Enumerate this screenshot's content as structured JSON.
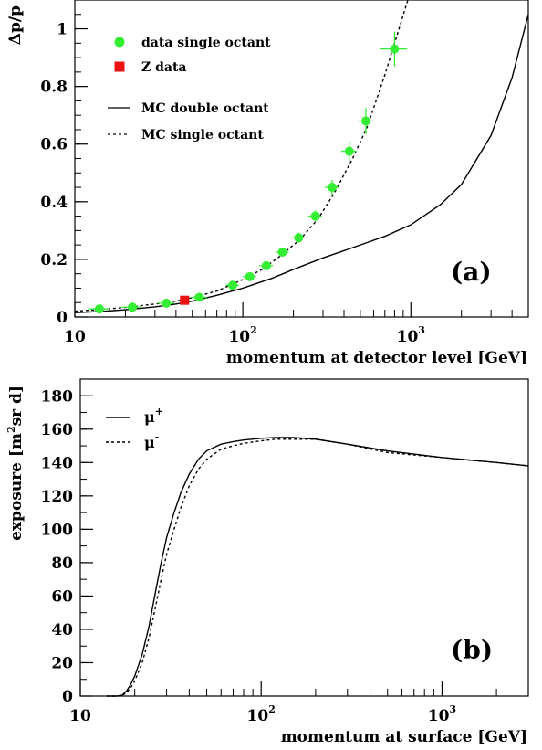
{
  "chart_data": [
    {
      "type": "scatter",
      "panel_label": "(a)",
      "xlabel": "momentum at detector level [GeV]",
      "ylabel": "Δp/p",
      "xscale": "log",
      "xlim": [
        10,
        5000
      ],
      "ylim": [
        0,
        1.1
      ],
      "xticks": [
        {
          "value": 10,
          "base": "10",
          "exp": ""
        },
        {
          "value": 100,
          "base": "10",
          "exp": "2"
        },
        {
          "value": 1000,
          "base": "10",
          "exp": "3"
        }
      ],
      "yticks": [
        0,
        0.2,
        0.4,
        0.6,
        0.8,
        1
      ],
      "legend_position": "top-left",
      "series": [
        {
          "name": "data single octant",
          "kind": "points",
          "color": "#33ee33",
          "x": [
            14,
            22,
            35,
            55,
            87,
            110,
            138,
            172,
            215,
            270,
            340,
            430,
            540,
            800
          ],
          "y": [
            0.028,
            0.034,
            0.048,
            0.068,
            0.11,
            0.14,
            0.178,
            0.225,
            0.275,
            0.35,
            0.45,
            0.575,
            0.68,
            0.93
          ],
          "xerr": [
            2,
            3,
            4,
            6,
            8,
            10,
            13,
            16,
            20,
            25,
            32,
            45,
            60,
            150
          ],
          "yerr": [
            0.006,
            0.006,
            0.007,
            0.008,
            0.01,
            0.012,
            0.013,
            0.015,
            0.018,
            0.02,
            0.025,
            0.035,
            0.045,
            0.06
          ]
        },
        {
          "name": "Z data",
          "kind": "points",
          "color": "#ee1111",
          "x": [
            45
          ],
          "y": [
            0.058
          ]
        },
        {
          "name": "MC double octant",
          "kind": "line",
          "style": "solid",
          "color": "#000000",
          "x": [
            10,
            15,
            20,
            30,
            40,
            50,
            70,
            100,
            150,
            200,
            300,
            400,
            500,
            700,
            1000,
            1500,
            2000,
            3000,
            4000,
            5000
          ],
          "y": [
            0.015,
            0.02,
            0.025,
            0.035,
            0.045,
            0.055,
            0.075,
            0.1,
            0.135,
            0.165,
            0.205,
            0.23,
            0.25,
            0.28,
            0.32,
            0.39,
            0.46,
            0.63,
            0.83,
            1.05
          ]
        },
        {
          "name": "MC single octant",
          "kind": "line",
          "style": "dashed",
          "color": "#000000",
          "x": [
            10,
            15,
            20,
            30,
            40,
            50,
            70,
            100,
            130,
            170,
            220,
            280,
            350,
            450,
            550,
            700,
            850,
            960
          ],
          "y": [
            0.02,
            0.027,
            0.033,
            0.045,
            0.055,
            0.067,
            0.09,
            0.13,
            0.165,
            0.215,
            0.27,
            0.34,
            0.43,
            0.55,
            0.66,
            0.84,
            1.0,
            1.1
          ]
        }
      ]
    },
    {
      "type": "line",
      "panel_label": "(b)",
      "xlabel": "momentum at surface [GeV]",
      "ylabel_base": "exposure [m",
      "ylabel_sup": "2",
      "ylabel_rest": "sr d]",
      "xscale": "log",
      "xlim": [
        10,
        3000
      ],
      "ylim": [
        0,
        190
      ],
      "xticks": [
        {
          "value": 10,
          "base": "10",
          "exp": ""
        },
        {
          "value": 100,
          "base": "10",
          "exp": "2"
        },
        {
          "value": 1000,
          "base": "10",
          "exp": "3"
        }
      ],
      "yticks": [
        0,
        20,
        40,
        60,
        80,
        100,
        120,
        140,
        160,
        180
      ],
      "legend_position": "top-left",
      "series": [
        {
          "name_base": "μ",
          "name_sup": "+",
          "style": "solid",
          "color": "#000000",
          "x": [
            14,
            16,
            17,
            18,
            19,
            20,
            22,
            24,
            26,
            28,
            30,
            33,
            36,
            40,
            45,
            50,
            60,
            70,
            80,
            100,
            120,
            150,
            200,
            300,
            500,
            1000,
            2000,
            3000
          ],
          "y": [
            0,
            0,
            0.5,
            3,
            7,
            12,
            25,
            42,
            62,
            80,
            95,
            110,
            122,
            133,
            142,
            147,
            151,
            152.5,
            153.5,
            154.5,
            155,
            155,
            154,
            151,
            147,
            143,
            140,
            138
          ]
        },
        {
          "name_base": "μ",
          "name_sup": "-",
          "style": "dashed",
          "color": "#000000",
          "x": [
            14,
            16,
            17,
            18,
            19,
            20,
            22,
            24,
            26,
            28,
            30,
            33,
            36,
            40,
            45,
            50,
            60,
            70,
            80,
            100,
            120,
            150,
            200,
            300,
            500,
            1000,
            2000,
            3000
          ],
          "y": [
            0,
            0,
            0.3,
            2,
            5,
            9,
            20,
            35,
            53,
            70,
            85,
            100,
            113,
            126,
            136,
            142,
            148,
            150,
            151.5,
            153,
            154,
            154,
            154,
            151,
            146,
            143,
            140,
            138
          ]
        }
      ]
    }
  ]
}
